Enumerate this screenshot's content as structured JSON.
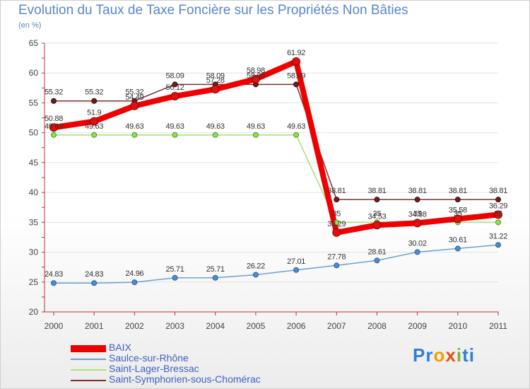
{
  "chart_data": {
    "type": "line",
    "title": "Evolution du Taux de Taxe Foncière sur les Propriétés Non Bâties",
    "ylabel": "(en %)",
    "xlabel": "",
    "ylim": [
      20,
      65
    ],
    "yticks": [
      20,
      25,
      30,
      35,
      40,
      45,
      50,
      55,
      60,
      65
    ],
    "categories": [
      "2000",
      "2001",
      "2002",
      "2003",
      "2004",
      "2005",
      "2006",
      "2007",
      "2008",
      "2009",
      "2010",
      "2011"
    ],
    "series": [
      {
        "name": "BAIX",
        "color": "#ee0000",
        "values": [
          50.88,
          51.9,
          54.49,
          56.12,
          57.28,
          58.98,
          61.92,
          33.29,
          34.53,
          34.88,
          35.58,
          36.29
        ],
        "labels": [
          "50.88",
          "51.9",
          "54.49",
          "56.12",
          "57.28",
          "58.98",
          "61.92",
          "33.29",
          "34.53",
          "34.88",
          "35.58",
          "36.29"
        ]
      },
      {
        "name": "Saulce-sur-Rhône",
        "color": "#6f9fd0",
        "values": [
          24.83,
          24.83,
          24.96,
          25.71,
          25.71,
          26.22,
          27.01,
          27.78,
          28.61,
          30.02,
          30.61,
          31.22
        ],
        "labels": [
          "24.83",
          "24.83",
          "24.96",
          "25.71",
          "25.71",
          "26.22",
          "27.01",
          "27.78",
          "28.61",
          "30.02",
          "30.61",
          "31.22"
        ]
      },
      {
        "name": "Saint-Lager-Bressac",
        "color": "#a6e27a",
        "values": [
          49.63,
          49.63,
          49.63,
          49.63,
          49.63,
          49.63,
          49.63,
          35,
          35,
          35,
          35,
          35
        ],
        "labels": [
          "49.63",
          "49.63",
          "49.63",
          "49.63",
          "49.63",
          "49.63",
          "49.63",
          "35",
          "35",
          "35",
          "35",
          "35"
        ]
      },
      {
        "name": "Saint-Symphorien-sous-Chomérac",
        "color": "#7a3030",
        "values": [
          55.32,
          55.32,
          55.32,
          58.09,
          58.09,
          58.09,
          58.09,
          38.81,
          38.81,
          38.81,
          38.81,
          38.81
        ],
        "labels": [
          "55.32",
          "55.32",
          "55.32",
          "58.09",
          "58.09",
          "58.09",
          "58.09",
          "38.81",
          "38.81",
          "38.81",
          "38.81",
          "38.81"
        ]
      }
    ]
  },
  "brand": {
    "p": "Pr",
    "o": "o",
    "x": "x",
    "i": "i",
    "rest": "ti"
  }
}
